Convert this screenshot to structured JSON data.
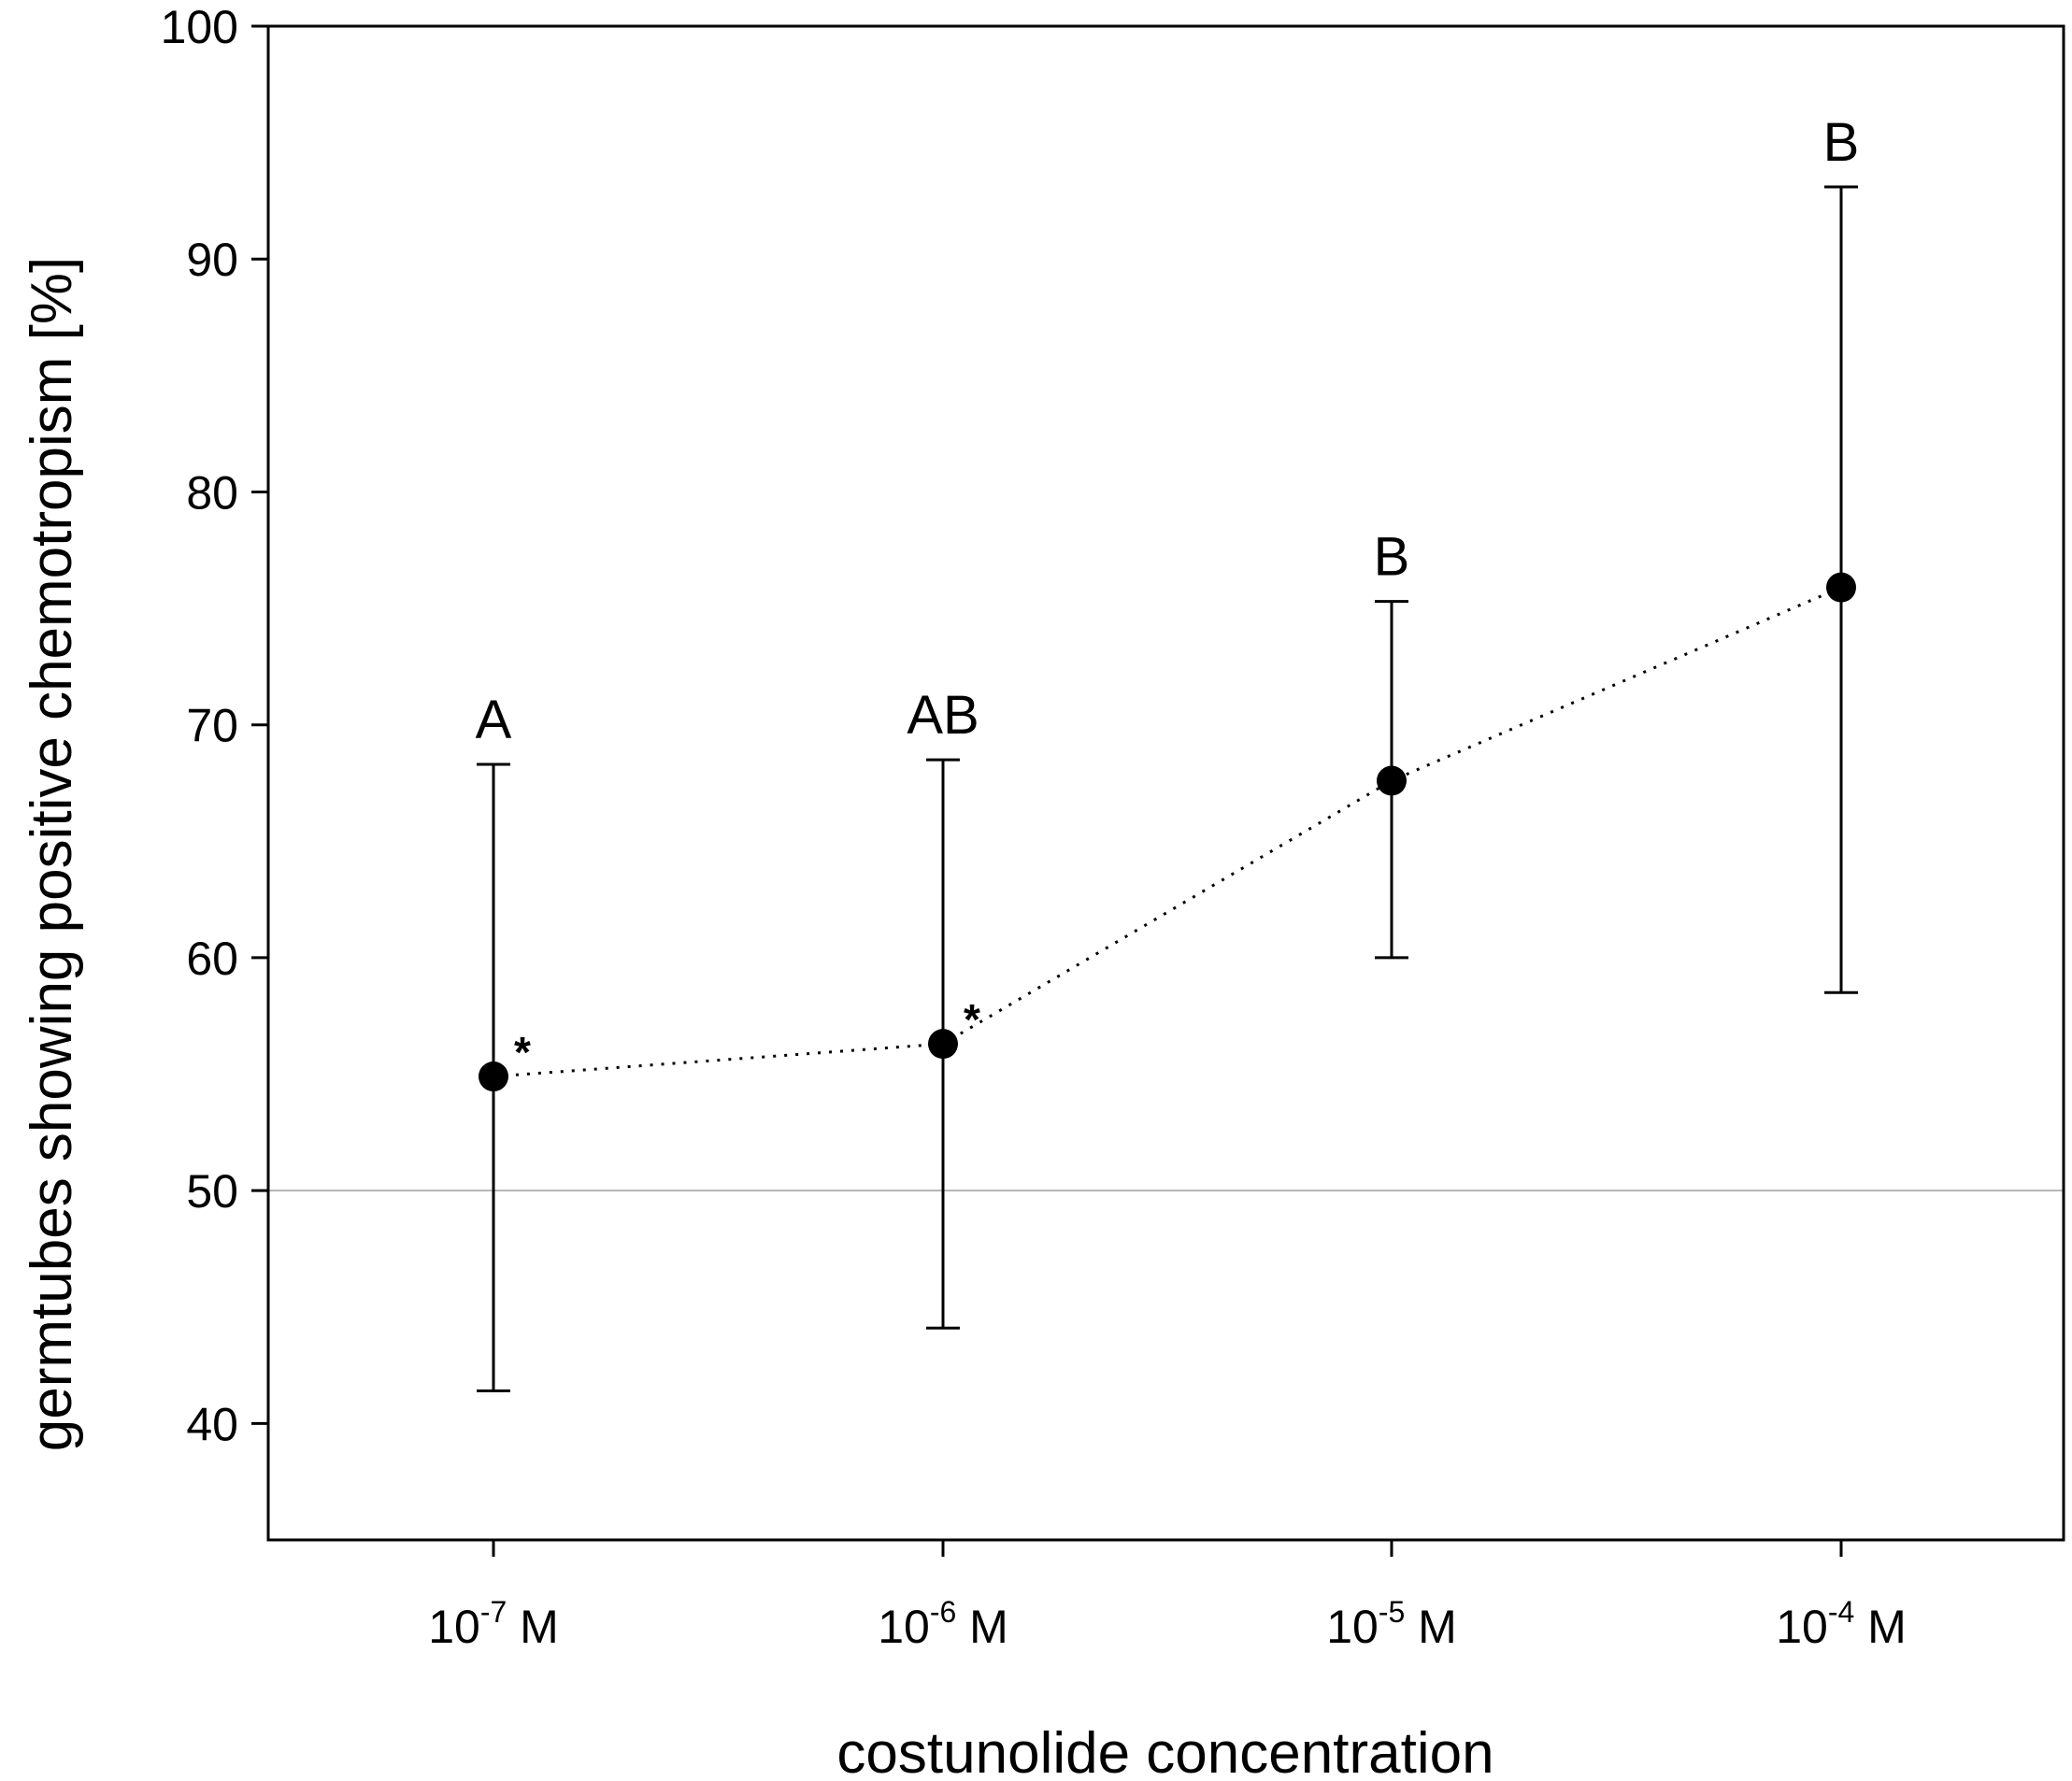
{
  "chart_data": {
    "type": "scatter",
    "xlabel": "costunolide concentration",
    "ylabel": "germtubes showing positive chemotropism [%]",
    "ylim": [
      35,
      100
    ],
    "yticks": [
      "40",
      "50",
      "60",
      "70",
      "80",
      "90",
      "100"
    ],
    "categories": [
      {
        "base": "10",
        "exp": "-7",
        "unit": " M"
      },
      {
        "base": "10",
        "exp": "-6",
        "unit": " M"
      },
      {
        "base": "10",
        "exp": "-5",
        "unit": " M"
      },
      {
        "base": "10",
        "exp": "-4",
        "unit": " M"
      }
    ],
    "values": [
      54.9,
      56.3,
      67.6,
      75.9
    ],
    "error_upper": [
      68.3,
      68.5,
      75.3,
      93.1
    ],
    "error_lower": [
      41.4,
      44.1,
      60.0,
      58.5
    ],
    "group_letters": [
      "A",
      "AB",
      "B",
      "B"
    ],
    "significance": [
      "*",
      "*",
      "",
      ""
    ],
    "reference_line": 50,
    "connector": "dotted",
    "grid": false,
    "legend": "none"
  }
}
